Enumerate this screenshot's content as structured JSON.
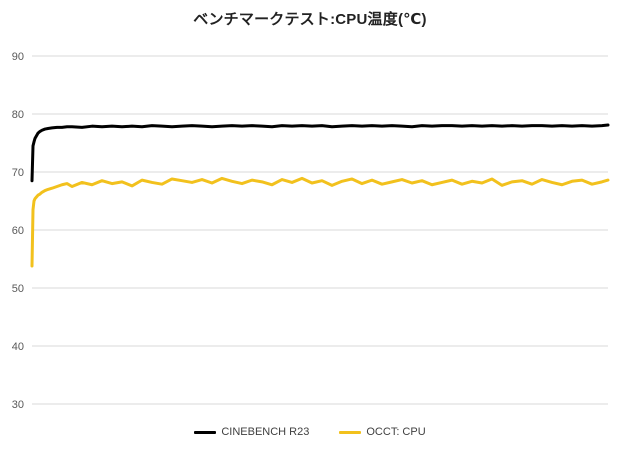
{
  "chart_data": {
    "type": "line",
    "title": "ベンチマークテスト:CPU温度(℃)",
    "xlabel": "",
    "ylabel": "",
    "ylim": [
      30,
      90
    ],
    "yticks": [
      30,
      40,
      50,
      60,
      70,
      80,
      90
    ],
    "grid": true,
    "legend_position": "bottom",
    "x": [
      0,
      1,
      2,
      3,
      4,
      5,
      6,
      8,
      10,
      13,
      16,
      20,
      25,
      30,
      35,
      40,
      50,
      60,
      70,
      80,
      90,
      100,
      110,
      120,
      130,
      140,
      150,
      160,
      170,
      180,
      190,
      200,
      210,
      220,
      230,
      240,
      250,
      260,
      270,
      280,
      290,
      300,
      310,
      320,
      330,
      340,
      350,
      360,
      370,
      380,
      390,
      400,
      410,
      420,
      430,
      440,
      450,
      460,
      470,
      480,
      490,
      500,
      510,
      520,
      530,
      540,
      550,
      560,
      570,
      576
    ],
    "series": [
      {
        "name": "CINEBENCH R23",
        "color": "#000000",
        "values": [
          68.5,
          74.5,
          75.2,
          75.8,
          76.1,
          76.4,
          76.7,
          77.0,
          77.2,
          77.4,
          77.5,
          77.6,
          77.7,
          77.7,
          77.8,
          77.8,
          77.7,
          77.9,
          77.8,
          77.9,
          77.8,
          77.9,
          77.8,
          78.0,
          77.9,
          77.8,
          77.9,
          78.0,
          77.9,
          77.8,
          77.9,
          78.0,
          77.9,
          78.0,
          77.9,
          77.8,
          78.0,
          77.9,
          78.0,
          77.9,
          78.0,
          77.8,
          77.9,
          78.0,
          77.9,
          78.0,
          77.9,
          78.0,
          77.9,
          77.8,
          78.0,
          77.9,
          78.0,
          78.0,
          77.9,
          78.0,
          77.9,
          78.0,
          77.9,
          78.0,
          77.9,
          78.0,
          78.0,
          77.9,
          78.0,
          77.9,
          78.0,
          77.9,
          78.0,
          78.1
        ]
      },
      {
        "name": "OCCT: CPU",
        "color": "#f2c11d",
        "values": [
          53.8,
          63.5,
          65.0,
          65.4,
          65.6,
          65.8,
          66.0,
          66.2,
          66.5,
          66.8,
          67.0,
          67.2,
          67.5,
          67.8,
          68.0,
          67.5,
          68.2,
          67.8,
          68.5,
          68.0,
          68.3,
          67.6,
          68.6,
          68.2,
          67.9,
          68.8,
          68.5,
          68.2,
          68.7,
          68.1,
          68.9,
          68.4,
          68.0,
          68.6,
          68.3,
          67.8,
          68.7,
          68.2,
          68.9,
          68.1,
          68.5,
          67.7,
          68.4,
          68.8,
          68.0,
          68.6,
          67.9,
          68.3,
          68.7,
          68.1,
          68.5,
          67.8,
          68.2,
          68.6,
          67.9,
          68.4,
          68.1,
          68.8,
          67.7,
          68.3,
          68.5,
          67.9,
          68.7,
          68.2,
          67.8,
          68.4,
          68.6,
          67.9,
          68.3,
          68.6
        ]
      }
    ]
  }
}
